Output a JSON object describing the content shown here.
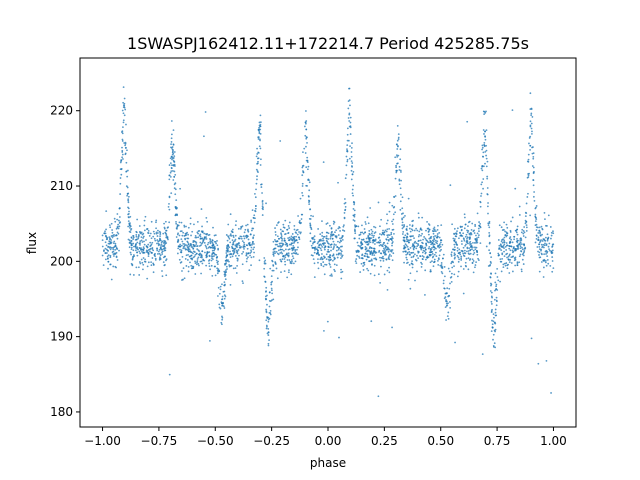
{
  "chart_data": {
    "type": "scatter",
    "title": "1SWASPJ162412.11+172214.7 Period 425285.75s",
    "xlabel": "phase",
    "ylabel": "flux",
    "xlim": [
      -1.1,
      1.1
    ],
    "ylim": [
      178,
      227
    ],
    "xticks": [
      -1.0,
      -0.75,
      -0.5,
      -0.25,
      0.0,
      0.25,
      0.5,
      0.75,
      1.0
    ],
    "xtick_labels": [
      "−1.00",
      "−0.75",
      "−0.50",
      "−0.25",
      "0.00",
      "0.25",
      "0.50",
      "0.75",
      "1.00"
    ],
    "yticks": [
      180,
      190,
      200,
      210,
      220
    ],
    "ytick_labels": [
      "180",
      "190",
      "200",
      "210",
      "220"
    ],
    "grid": false,
    "point_color": "#1f77b4",
    "phase_range": [
      -1.0,
      1.0
    ],
    "baseline_flux": 202,
    "baseline_scatter": 1.6,
    "features": [
      {
        "kind": "peak",
        "phase": -0.905,
        "flux": 219.5
      },
      {
        "kind": "peak",
        "phase": -0.69,
        "flux": 215.0
      },
      {
        "kind": "dip",
        "phase": -0.47,
        "flux": 194.5
      },
      {
        "kind": "dip",
        "phase": -0.265,
        "flux": 191.5
      },
      {
        "kind": "peak",
        "phase": -0.305,
        "flux": 216.5
      },
      {
        "kind": "peak",
        "phase": -0.1,
        "flux": 217.5
      },
      {
        "kind": "peak",
        "phase": 0.095,
        "flux": 219.5
      },
      {
        "kind": "peak",
        "phase": 0.31,
        "flux": 215.0
      },
      {
        "kind": "dip",
        "phase": 0.53,
        "flux": 194.5
      },
      {
        "kind": "peak",
        "phase": 0.695,
        "flux": 216.5
      },
      {
        "kind": "dip",
        "phase": 0.735,
        "flux": 191.5
      },
      {
        "kind": "peak",
        "phase": 0.9,
        "flux": 217.5
      }
    ]
  }
}
